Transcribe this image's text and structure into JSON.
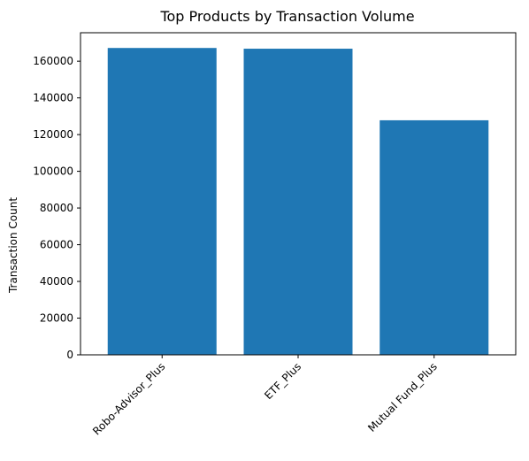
{
  "chart_data": {
    "type": "bar",
    "title": "Top Products by Transaction Volume",
    "xlabel": "",
    "ylabel": "Transaction Count",
    "categories": [
      "Robo-Advisor_Plus",
      "ETF_Plus",
      "Mutual Fund_Plus"
    ],
    "values": [
      167200,
      166800,
      127800
    ],
    "ylim": [
      0,
      175500
    ],
    "yticks": [
      0,
      20000,
      40000,
      60000,
      80000,
      100000,
      120000,
      140000,
      160000
    ],
    "ytick_labels": [
      "0",
      "20000",
      "40000",
      "60000",
      "80000",
      "100000",
      "120000",
      "140000",
      "160000"
    ],
    "x_tick_rotation_deg": 45,
    "grid": false,
    "legend": "none",
    "bar_color": "#1f77b4"
  }
}
